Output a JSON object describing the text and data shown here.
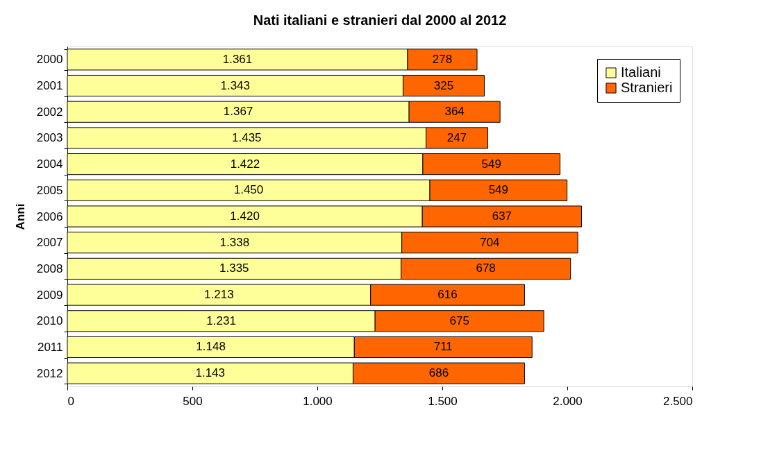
{
  "chart_data": {
    "type": "bar",
    "orientation": "horizontal",
    "stacked": true,
    "title": "Nati italiani e stranieri dal 2000 al 2012",
    "ylabel": "Anni",
    "categories": [
      "2000",
      "2001",
      "2002",
      "2003",
      "2004",
      "2005",
      "2006",
      "2007",
      "2008",
      "2009",
      "2010",
      "2011",
      "2012"
    ],
    "series": [
      {
        "name": "Italiani",
        "color": "#ffff99",
        "values": [
          1361,
          1343,
          1367,
          1435,
          1422,
          1450,
          1420,
          1338,
          1335,
          1213,
          1231,
          1148,
          1143
        ],
        "value_labels": [
          "1.361",
          "1.343",
          "1.367",
          "1.435",
          "1.422",
          "1.450",
          "1.420",
          "1.338",
          "1.335",
          "1.213",
          "1.231",
          "1.148",
          "1.143"
        ]
      },
      {
        "name": "Stranieri",
        "color": "#ff6600",
        "values": [
          278,
          325,
          364,
          247,
          549,
          549,
          637,
          704,
          678,
          616,
          675,
          711,
          686
        ],
        "value_labels": [
          "278",
          "325",
          "364",
          "247",
          "549",
          "549",
          "637",
          "704",
          "678",
          "616",
          "675",
          "711",
          "686"
        ]
      }
    ],
    "xlim": [
      0,
      2500
    ],
    "xticks": [
      0,
      500,
      {
        "value": 1000,
        "label": "1.000"
      },
      {
        "value": 1500,
        "label": "1.500"
      },
      {
        "value": 2000,
        "label": "2.000"
      },
      {
        "value": 2500,
        "label": "2.500"
      }
    ],
    "legend": "top right",
    "grid": false
  }
}
